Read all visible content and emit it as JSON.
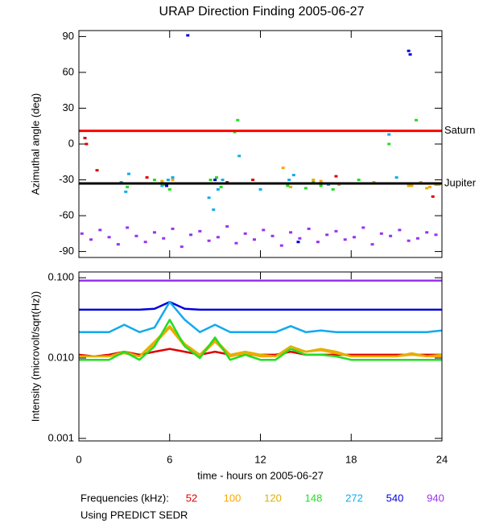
{
  "chart_data": [
    {
      "type": "scatter",
      "title": "URAP Direction Finding  2005-06-27",
      "ylabel": "Azimuthal angle (deg)",
      "xlim": [
        0,
        24
      ],
      "xticks": [
        0,
        6,
        12,
        18,
        24
      ],
      "ylim": [
        -95,
        95
      ],
      "yticks": [
        90,
        60,
        30,
        0,
        -30,
        -60,
        -90
      ],
      "reference_lines": [
        {
          "label": "Saturn",
          "value": 11,
          "color": "#ff0000"
        },
        {
          "label": "Jupiter",
          "value": -33,
          "color": "#000000"
        }
      ],
      "series": [
        {
          "color": "#9933ee",
          "x": [
            0.2,
            0.8,
            1.4,
            2.0,
            2.6,
            3.2,
            3.8,
            4.4,
            5.0,
            5.6,
            6.2,
            6.8,
            7.4,
            8.0,
            8.6,
            9.2,
            9.8,
            10.4,
            11.0,
            11.6,
            12.2,
            12.8,
            13.4,
            14.0,
            14.6,
            15.2,
            15.8,
            16.4,
            17.0,
            17.6,
            18.2,
            18.8,
            19.4,
            20.0,
            20.6,
            21.2,
            21.8,
            22.4,
            23.0,
            23.6
          ],
          "values": [
            -75,
            -80,
            -72,
            -78,
            -84,
            -70,
            -77,
            -82,
            -74,
            -79,
            -71,
            -86,
            -76,
            -73,
            -81,
            -78,
            -69,
            -83,
            -75,
            -80,
            -72,
            -77,
            -85,
            -74,
            -79,
            -71,
            -82,
            -76,
            -73,
            -80,
            -78,
            -70,
            -84,
            -75,
            -77,
            -72,
            -81,
            -79,
            -74,
            -76
          ]
        },
        {
          "color": "#0000dd",
          "x": [
            7.2,
            21.8,
            21.9,
            9.0,
            5.8,
            14.5
          ],
          "values": [
            91,
            78,
            75,
            -30,
            -35,
            -82
          ]
        },
        {
          "color": "#11aaee",
          "x": [
            2.8,
            3.1,
            3.3,
            5.5,
            5.9,
            6.2,
            8.6,
            8.9,
            9.2,
            9.5,
            10.6,
            12.0,
            13.9,
            14.2,
            16.5,
            20.5,
            21.0
          ],
          "values": [
            -32,
            -40,
            -25,
            -35,
            -30,
            -28,
            -45,
            -55,
            -38,
            -30,
            -10,
            -38,
            -30,
            -26,
            -34,
            8,
            -28
          ]
        },
        {
          "color": "#22dd22",
          "x": [
            2.9,
            3.2,
            5.0,
            5.6,
            6.0,
            8.7,
            9.1,
            9.4,
            10.3,
            10.5,
            13.8,
            14.5,
            15.0,
            15.5,
            16.0,
            16.8,
            17.5,
            18.5,
            20.5,
            22.3
          ],
          "values": [
            -33,
            -36,
            -30,
            -34,
            -38,
            -30,
            -28,
            -36,
            10,
            20,
            -35,
            -33,
            -37,
            -32,
            -35,
            -38,
            -33,
            -30,
            0,
            20
          ]
        },
        {
          "color": "#e0b000",
          "x": [
            5.5,
            9.0,
            14.0,
            15.5,
            17.2,
            19.5,
            21.8,
            22.5,
            23.0,
            23.6
          ],
          "values": [
            -31,
            -33,
            -36,
            -30,
            -34,
            -32,
            -35,
            -33,
            -37,
            -34
          ]
        },
        {
          "color": "#ffa500",
          "x": [
            6.2,
            13.5,
            16.0,
            21.6,
            22.0,
            22.6,
            23.2,
            23.8
          ],
          "values": [
            -30,
            -20,
            -31,
            -33,
            -35,
            -32,
            -36,
            -34
          ]
        },
        {
          "color": "#e00000",
          "x": [
            0.4,
            0.5,
            1.2,
            4.5,
            9.8,
            11.5,
            17.0,
            23.4
          ],
          "values": [
            5,
            0,
            -22,
            -28,
            -32,
            -30,
            -27,
            -44
          ]
        }
      ]
    },
    {
      "type": "line",
      "ylabel": "Intensity (microvolt/sqrt(Hz))",
      "xlabel": "time - hours on 2005-06-27",
      "log_y": true,
      "xlim": [
        0,
        24
      ],
      "xticks": [
        0,
        6,
        12,
        18,
        24
      ],
      "ylim": [
        0.00093,
        0.118
      ],
      "yticks": [
        {
          "value": 0.1,
          "label": "0.100"
        },
        {
          "value": 0.01,
          "label": "0.010"
        },
        0.001
      ],
      "x": [
        0,
        1,
        2,
        3,
        4,
        5,
        6,
        7,
        8,
        9,
        10,
        11,
        12,
        13,
        14,
        15,
        16,
        17,
        18,
        19,
        20,
        21,
        22,
        23,
        24
      ],
      "series": [
        {
          "name": "940",
          "color": "#9933ee",
          "values": [
            0.092,
            0.092,
            0.092,
            0.092,
            0.092,
            0.092,
            0.092,
            0.092,
            0.092,
            0.092,
            0.092,
            0.092,
            0.092,
            0.092,
            0.092,
            0.092,
            0.092,
            0.092,
            0.092,
            0.092,
            0.092,
            0.092,
            0.092,
            0.092,
            0.092
          ]
        },
        {
          "name": "540",
          "color": "#0000dd",
          "values": [
            0.04,
            0.04,
            0.04,
            0.04,
            0.04,
            0.041,
            0.05,
            0.041,
            0.04,
            0.04,
            0.04,
            0.04,
            0.04,
            0.04,
            0.04,
            0.04,
            0.04,
            0.04,
            0.04,
            0.04,
            0.04,
            0.04,
            0.04,
            0.04,
            0.04
          ]
        },
        {
          "name": "272",
          "color": "#11aaee",
          "values": [
            0.021,
            0.021,
            0.021,
            0.026,
            0.021,
            0.024,
            0.05,
            0.03,
            0.021,
            0.026,
            0.021,
            0.021,
            0.021,
            0.021,
            0.025,
            0.021,
            0.022,
            0.021,
            0.021,
            0.021,
            0.021,
            0.021,
            0.021,
            0.021,
            0.022
          ]
        },
        {
          "name": "52",
          "color": "#e00000",
          "values": [
            0.011,
            0.0105,
            0.011,
            0.012,
            0.011,
            0.012,
            0.013,
            0.012,
            0.011,
            0.012,
            0.011,
            0.011,
            0.011,
            0.011,
            0.012,
            0.011,
            0.011,
            0.011,
            0.011,
            0.011,
            0.011,
            0.011,
            0.011,
            0.011,
            0.011
          ]
        },
        {
          "name": "100",
          "color": "#ffa500",
          "values": [
            0.0105,
            0.0105,
            0.0105,
            0.0115,
            0.0105,
            0.015,
            0.024,
            0.014,
            0.0105,
            0.016,
            0.0105,
            0.0115,
            0.0105,
            0.0105,
            0.013,
            0.012,
            0.0125,
            0.0115,
            0.0105,
            0.0105,
            0.0105,
            0.0105,
            0.011,
            0.0105,
            0.0105
          ]
        },
        {
          "name": "120",
          "color": "#e0b000",
          "values": [
            0.0105,
            0.0105,
            0.0105,
            0.012,
            0.0105,
            0.016,
            0.025,
            0.015,
            0.011,
            0.017,
            0.011,
            0.012,
            0.011,
            0.0105,
            0.014,
            0.012,
            0.013,
            0.012,
            0.0105,
            0.0105,
            0.0105,
            0.0105,
            0.0115,
            0.0105,
            0.011
          ]
        },
        {
          "name": "148",
          "color": "#22dd22",
          "values": [
            0.0095,
            0.0095,
            0.0095,
            0.012,
            0.0095,
            0.014,
            0.03,
            0.014,
            0.01,
            0.018,
            0.0095,
            0.011,
            0.0095,
            0.0095,
            0.013,
            0.011,
            0.011,
            0.0105,
            0.0095,
            0.0095,
            0.0095,
            0.0095,
            0.0095,
            0.0095,
            0.0095
          ]
        }
      ]
    }
  ],
  "legend_title": "Frequencies (kHz):",
  "legend_order": [
    3,
    4,
    5,
    6,
    2,
    1,
    0
  ],
  "footnote": "Using PREDICT SEDR"
}
